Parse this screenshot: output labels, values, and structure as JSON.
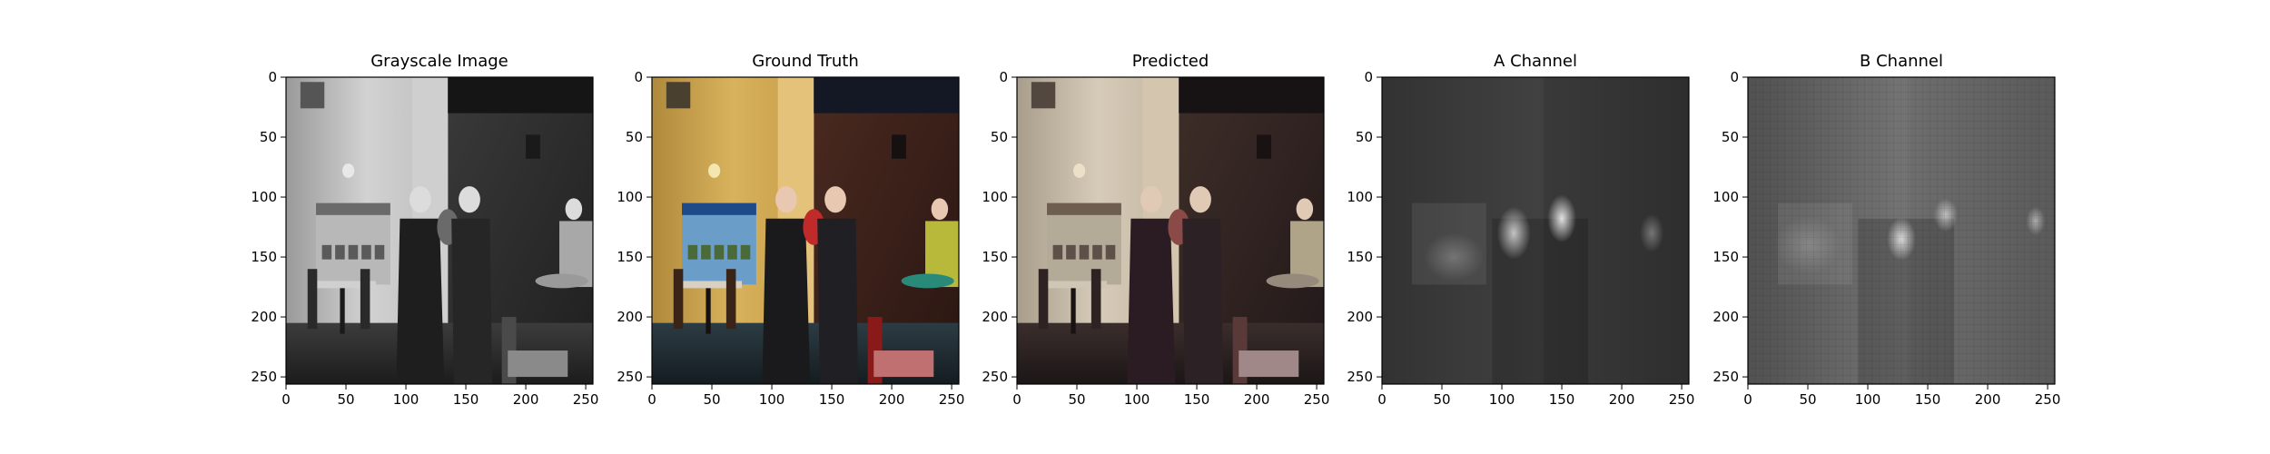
{
  "panels": [
    {
      "title": "Grayscale Image",
      "image": "grayscale-restaurant-photo",
      "xticks": [
        0,
        50,
        100,
        150,
        200,
        250
      ],
      "yticks": [
        0,
        50,
        100,
        150,
        200,
        250
      ],
      "xlim": [
        0,
        256
      ],
      "ylim": [
        256,
        0
      ]
    },
    {
      "title": "Ground Truth",
      "image": "color-restaurant-photo",
      "xticks": [
        0,
        50,
        100,
        150,
        200,
        250
      ],
      "yticks": [
        0,
        50,
        100,
        150,
        200,
        250
      ],
      "xlim": [
        0,
        256
      ],
      "ylim": [
        256,
        0
      ]
    },
    {
      "title": "Predicted",
      "image": "predicted-color-restaurant-photo",
      "xticks": [
        0,
        50,
        100,
        150,
        200,
        250
      ],
      "yticks": [
        0,
        50,
        100,
        150,
        200,
        250
      ],
      "xlim": [
        0,
        256
      ],
      "ylim": [
        256,
        0
      ]
    },
    {
      "title": "A Channel",
      "image": "a-channel-map",
      "xticks": [
        0,
        50,
        100,
        150,
        200,
        250
      ],
      "yticks": [
        0,
        50,
        100,
        150,
        200,
        250
      ],
      "xlim": [
        0,
        256
      ],
      "ylim": [
        256,
        0
      ]
    },
    {
      "title": "B Channel",
      "image": "b-channel-map",
      "xticks": [
        0,
        50,
        100,
        150,
        200,
        250
      ],
      "yticks": [
        0,
        50,
        100,
        150,
        200,
        250
      ],
      "xlim": [
        0,
        256
      ],
      "ylim": [
        256,
        0
      ]
    }
  ]
}
